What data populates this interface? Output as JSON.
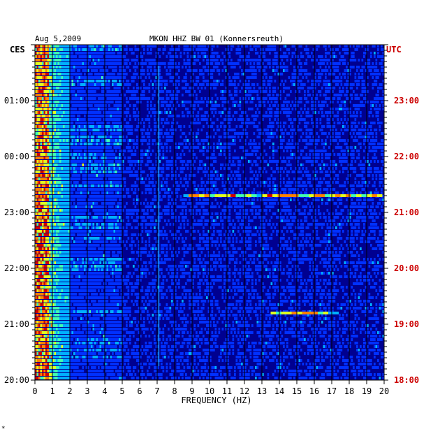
{
  "chart_data": {
    "type": "heatmap",
    "header": {
      "date": "Aug 5,2009",
      "title": "MKON HHZ BW 01 (Konnersreuth)"
    },
    "left_axis_label": "CES",
    "right_axis_label": "UTC",
    "xlabel": "FREQUENCY (HZ)",
    "xlim": [
      0,
      20
    ],
    "x_ticks": [
      "0",
      "1",
      "2",
      "3",
      "4",
      "5",
      "6",
      "7",
      "8",
      "9",
      "10",
      "11",
      "12",
      "13",
      "14",
      "15",
      "16",
      "17",
      "18",
      "19",
      "20"
    ],
    "y_ticks_left": [
      "01:00",
      "00:00",
      "23:00",
      "22:00",
      "21:00",
      "20:00"
    ],
    "y_ticks_right": [
      "23:00",
      "22:00",
      "21:00",
      "20:00",
      "19:00",
      "18:00"
    ],
    "y_tick_hours_from_bottom": [
      5,
      4,
      3,
      2,
      1,
      0
    ],
    "hours_span": 6,
    "colormap": [
      "#000090",
      "#0030ff",
      "#00b0ff",
      "#40ffb0",
      "#e0ff20",
      "#ff8000",
      "#d00000"
    ],
    "grid": true,
    "features": [
      {
        "name": "low-frequency noise band",
        "freq_range": [
          0,
          2
        ],
        "intensity": "high"
      },
      {
        "name": "persistent line",
        "freq": 7.1
      },
      {
        "name": "transient line ~21:15 UTC",
        "freq_range": [
          8.5,
          19.8
        ],
        "hour_from_bottom": 3.3
      },
      {
        "name": "transient line ~19:13 UTC",
        "freq_range": [
          13.5,
          17.2
        ],
        "hour_from_bottom": 1.2
      }
    ]
  },
  "footnote": "*"
}
